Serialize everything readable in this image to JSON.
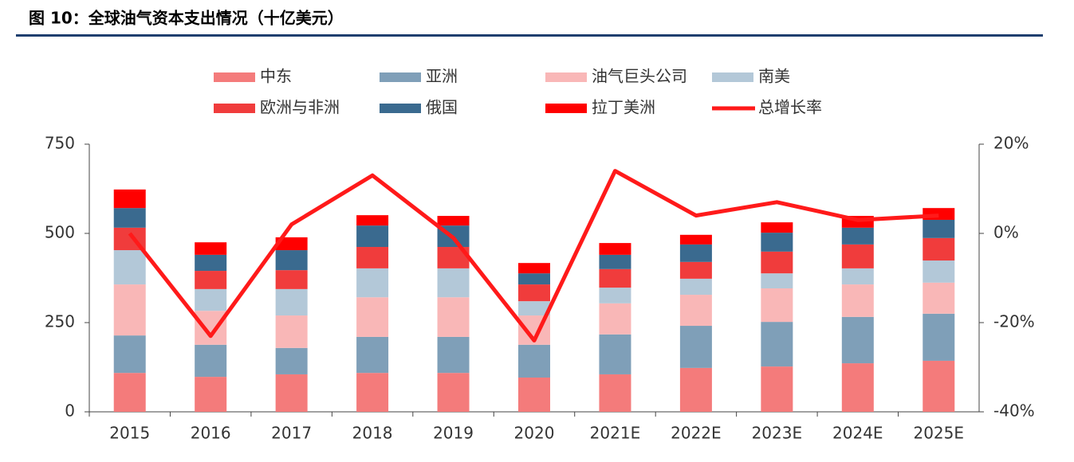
{
  "chart_data": {
    "type": "bar",
    "stacked": true,
    "title": "图 10：全球油气资本支出情况（十亿美元）",
    "categories": [
      "2015",
      "2016",
      "2017",
      "2018",
      "2019",
      "2020",
      "2021E",
      "2022E",
      "2023E",
      "2024E",
      "2025E"
    ],
    "series": [
      {
        "name": "中东",
        "color": "#f47b7b",
        "values": [
          109,
          98,
          105,
          109,
          109,
          96,
          105,
          123,
          127,
          136,
          143
        ]
      },
      {
        "name": "亚洲",
        "color": "#7f9fb8",
        "values": [
          105,
          90,
          74,
          101,
          101,
          92,
          112,
          118,
          125,
          130,
          132
        ]
      },
      {
        "name": "油气巨头公司",
        "color": "#f9b7b7",
        "values": [
          143,
          95,
          91,
          111,
          111,
          82,
          87,
          87,
          94,
          91,
          87
        ]
      },
      {
        "name": "南美",
        "color": "#b3c8d8",
        "values": [
          96,
          61,
          74,
          81,
          81,
          40,
          44,
          45,
          42,
          45,
          62
        ]
      },
      {
        "name": "欧洲与非洲",
        "color": "#f03c3c",
        "values": [
          63,
          51,
          53,
          60,
          60,
          47,
          52,
          47,
          61,
          67,
          63
        ]
      },
      {
        "name": "俄国",
        "color": "#3a6a8f",
        "values": [
          55,
          45,
          56,
          60,
          60,
          31,
          40,
          49,
          53,
          47,
          51
        ]
      },
      {
        "name": "拉丁美洲",
        "color": "#ff0000",
        "values": [
          52,
          35,
          36,
          29,
          27,
          29,
          33,
          27,
          29,
          33,
          33
        ]
      },
      {
        "name": "总增长率",
        "color": "#ff1a1a",
        "type": "line",
        "axis": "y2",
        "values": [
          0,
          -23,
          2,
          13,
          -1,
          -24,
          14,
          4,
          7,
          3,
          4
        ]
      }
    ],
    "ylim": [
      0,
      750
    ],
    "yticks": [
      0,
      250,
      500,
      750
    ],
    "y2lim": [
      -40,
      20
    ],
    "y2ticks": [
      {
        "value": -40,
        "label": "-40%"
      },
      {
        "value": -20,
        "label": "-20%"
      },
      {
        "value": 0,
        "label": "0%"
      },
      {
        "value": 20,
        "label": "20%"
      }
    ],
    "grid": false,
    "legend": "top"
  }
}
